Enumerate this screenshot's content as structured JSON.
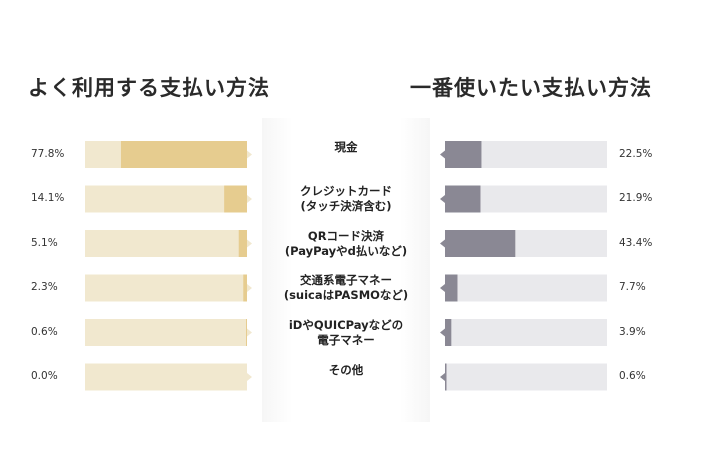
{
  "titles": {
    "left": "よく利用する支払い方法",
    "right": "一番使いたい支払い方法"
  },
  "colors": {
    "left_track": "#f1e8cf",
    "left_fill": "#e6cc8f",
    "right_track": "#e9e9ec",
    "right_fill": "#8a8894"
  },
  "chart_data": [
    {
      "type": "bar",
      "title": "よく利用する支払い方法",
      "orientation": "horizontal-right-to-left",
      "categories": [
        "現金",
        "クレジットカード(タッチ決済含む)",
        "QRコード決済(PayPayやd払いなど)",
        "交通系電子マネー(suicaはPASMOなど)",
        "iDやQUICPayなどの電子マネー",
        "その他"
      ],
      "values": [
        77.8,
        14.1,
        5.1,
        2.3,
        0.6,
        0.0
      ],
      "value_labels": [
        "77.8%",
        "14.1%",
        "5.1%",
        "2.3%",
        "0.6%",
        "0.0%"
      ],
      "xlim": [
        0,
        100
      ]
    },
    {
      "type": "bar",
      "title": "一番使いたい支払い方法",
      "orientation": "horizontal-left-to-right",
      "categories": [
        "現金",
        "クレジットカード(タッチ決済含む)",
        "QRコード決済(PayPayやd払いなど)",
        "交通系電子マネー(suicaはPASMOなど)",
        "iDやQUICPayなどの電子マネー",
        "その他"
      ],
      "values": [
        22.5,
        21.9,
        43.4,
        7.7,
        3.9,
        0.6
      ],
      "value_labels": [
        "22.5%",
        "21.9%",
        "43.4%",
        "7.7%",
        "3.9%",
        "0.6%"
      ],
      "xlim": [
        0,
        100
      ]
    }
  ],
  "category_labels": [
    [
      "現金"
    ],
    [
      "クレジットカード",
      "(タッチ決済含む)"
    ],
    [
      "QRコード決済",
      "(PayPayやd払いなど)"
    ],
    [
      "交通系電子マネー",
      "(suicaはPASMOなど)"
    ],
    [
      "iDやQUICPayなどの",
      "電子マネー"
    ],
    [
      "その他"
    ]
  ]
}
